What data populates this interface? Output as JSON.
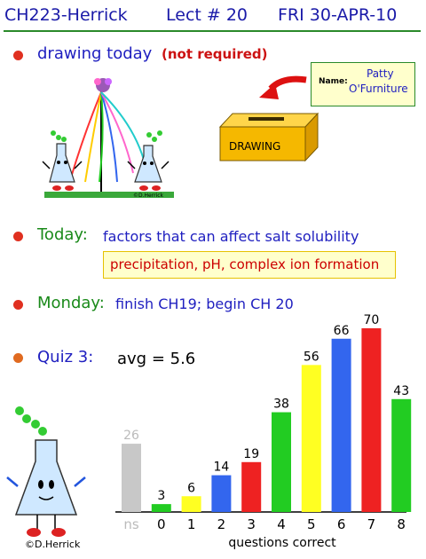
{
  "header": {
    "course": "CH223-Herrick",
    "lecture": "Lect # 20",
    "date": "FRI 30-APR-10"
  },
  "drawing": {
    "label": "drawing today",
    "note": "(not required)",
    "name_label": "Name:",
    "name_line1": "Patty",
    "name_line2": "O'Furniture",
    "box_label": "DRAWING",
    "credit": "©D.Herrick"
  },
  "today": {
    "label": "Today:",
    "text": "factors that can affect salt solubility",
    "highlight": "precipitation, pH, complex ion formation"
  },
  "monday": {
    "label": "Monday:",
    "text": "finish CH19; begin CH 20"
  },
  "quiz": {
    "label": "Quiz 3:",
    "avg": "avg = 5.6"
  },
  "credit_bottom": "©D.Herrick",
  "colors": {
    "title": "#1a1aa8",
    "bullet": "#e03020",
    "green": "#1a8a1a",
    "blue": "#2020c0"
  },
  "chart_data": {
    "type": "bar",
    "categories": [
      "ns",
      "0",
      "1",
      "2",
      "3",
      "4",
      "5",
      "6",
      "7",
      "8"
    ],
    "values": [
      26,
      3,
      6,
      14,
      19,
      38,
      56,
      66,
      70,
      43
    ],
    "bar_colors": [
      "#c8c8c8",
      "#22cc22",
      "#ffff22",
      "#3366ee",
      "#ee2222",
      "#22cc22",
      "#ffff22",
      "#3366ee",
      "#ee2222",
      "#22cc22"
    ],
    "xlabel": "questions correct",
    "ylabel": "",
    "ylim": [
      0,
      72
    ],
    "grid": false,
    "legend": "none"
  }
}
